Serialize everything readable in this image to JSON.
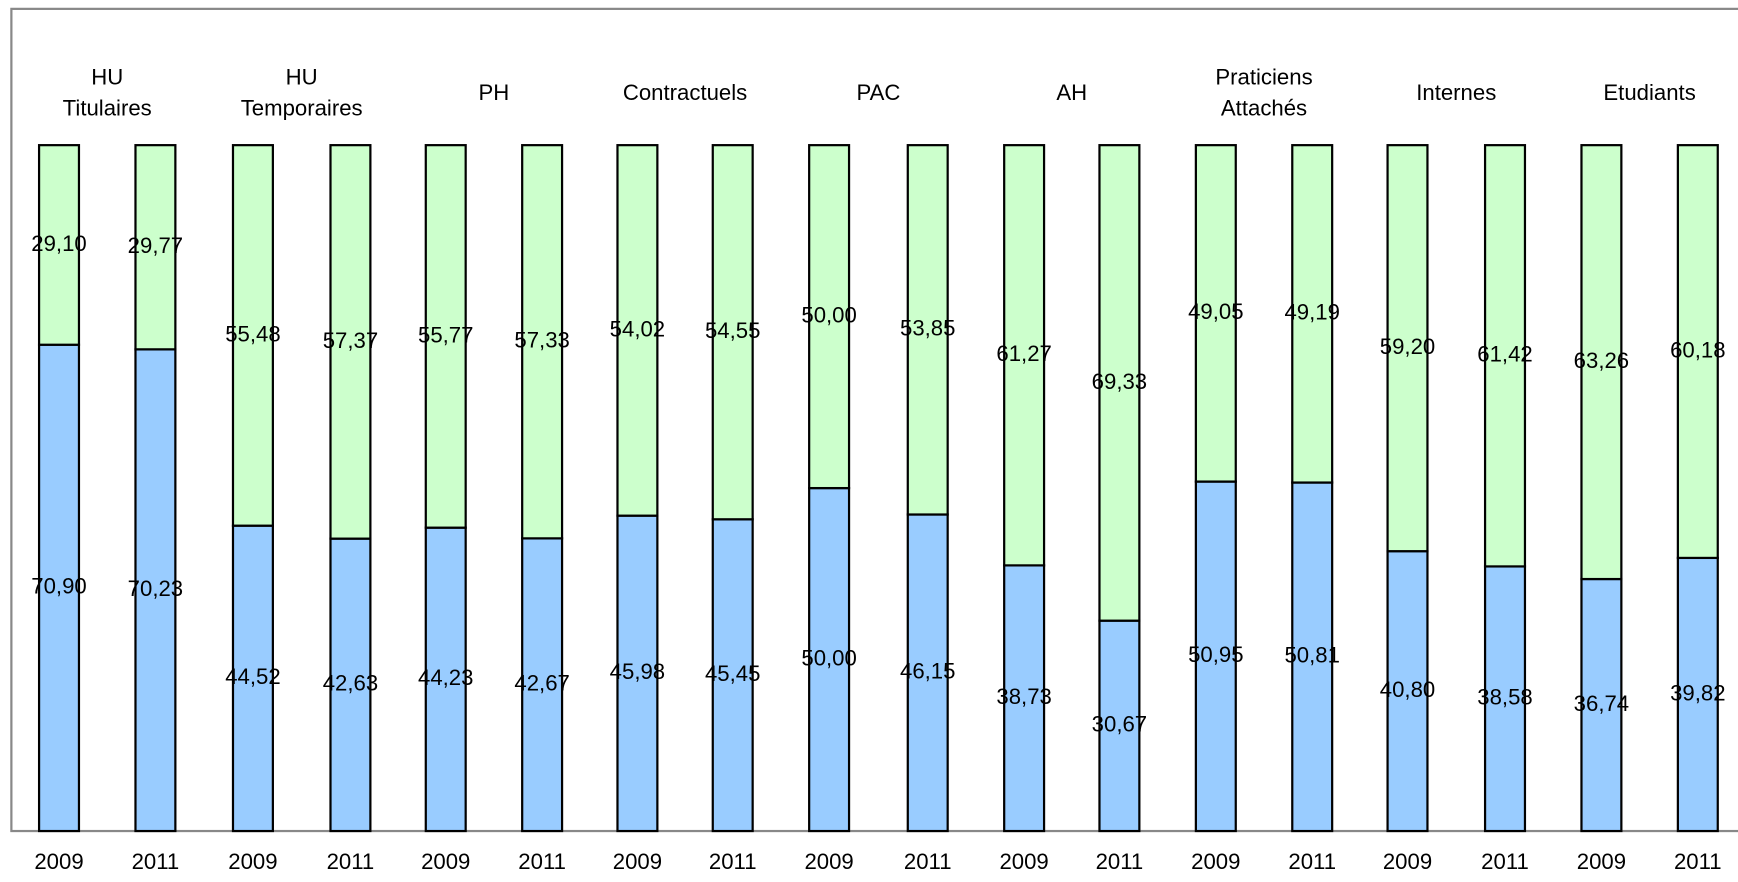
{
  "chart_data": {
    "type": "stacked_bar",
    "categories": [
      "2009",
      "2011",
      "2009",
      "2011",
      "2009",
      "2011",
      "2009",
      "2011",
      "2009",
      "2011",
      "2009",
      "2011",
      "2009",
      "2011",
      "2009",
      "2011",
      "2009",
      "2011"
    ],
    "groups": [
      {
        "lines": [
          "HU",
          "Titulaires"
        ]
      },
      {
        "lines": [
          "HU",
          "Temporaires"
        ]
      },
      {
        "lines": [
          "PH"
        ]
      },
      {
        "lines": [
          "Contractuels"
        ]
      },
      {
        "lines": [
          "PAC"
        ]
      },
      {
        "lines": [
          "AH"
        ]
      },
      {
        "lines": [
          "Praticiens",
          "Attachés"
        ]
      },
      {
        "lines": [
          "Internes"
        ]
      },
      {
        "lines": [
          "Etudiants"
        ]
      }
    ],
    "ylim": [
      0,
      100
    ],
    "series": [
      {
        "color": "#99ccff",
        "values": [
          70.9,
          70.23,
          44.52,
          42.63,
          44.23,
          42.67,
          45.98,
          45.45,
          50.0,
          46.15,
          38.73,
          30.67,
          50.95,
          50.81,
          40.8,
          38.58,
          36.74,
          39.82
        ],
        "value_labels": [
          "70,90",
          "70,23",
          "44,52",
          "42,63",
          "44,23",
          "42,67",
          "45,98",
          "45,45",
          "50,00",
          "46,15",
          "38,73",
          "30,67",
          "50,95",
          "50,81",
          "40,80",
          "38,58",
          "36,74",
          "39,82"
        ]
      },
      {
        "color": "#ccffcc",
        "values": [
          29.1,
          29.77,
          55.48,
          57.37,
          55.77,
          57.33,
          54.02,
          54.55,
          50.0,
          53.85,
          61.27,
          69.33,
          49.05,
          49.19,
          59.2,
          61.42,
          63.26,
          60.18
        ],
        "value_labels": [
          "29,10",
          "29,77",
          "55,48",
          "57,37",
          "55,77",
          "57,33",
          "54,02",
          "54,55",
          "50,00",
          "53,85",
          "61,27",
          "69,33",
          "49,05",
          "49,19",
          "59,20",
          "61,42",
          "63,26",
          "60,18"
        ]
      }
    ]
  }
}
